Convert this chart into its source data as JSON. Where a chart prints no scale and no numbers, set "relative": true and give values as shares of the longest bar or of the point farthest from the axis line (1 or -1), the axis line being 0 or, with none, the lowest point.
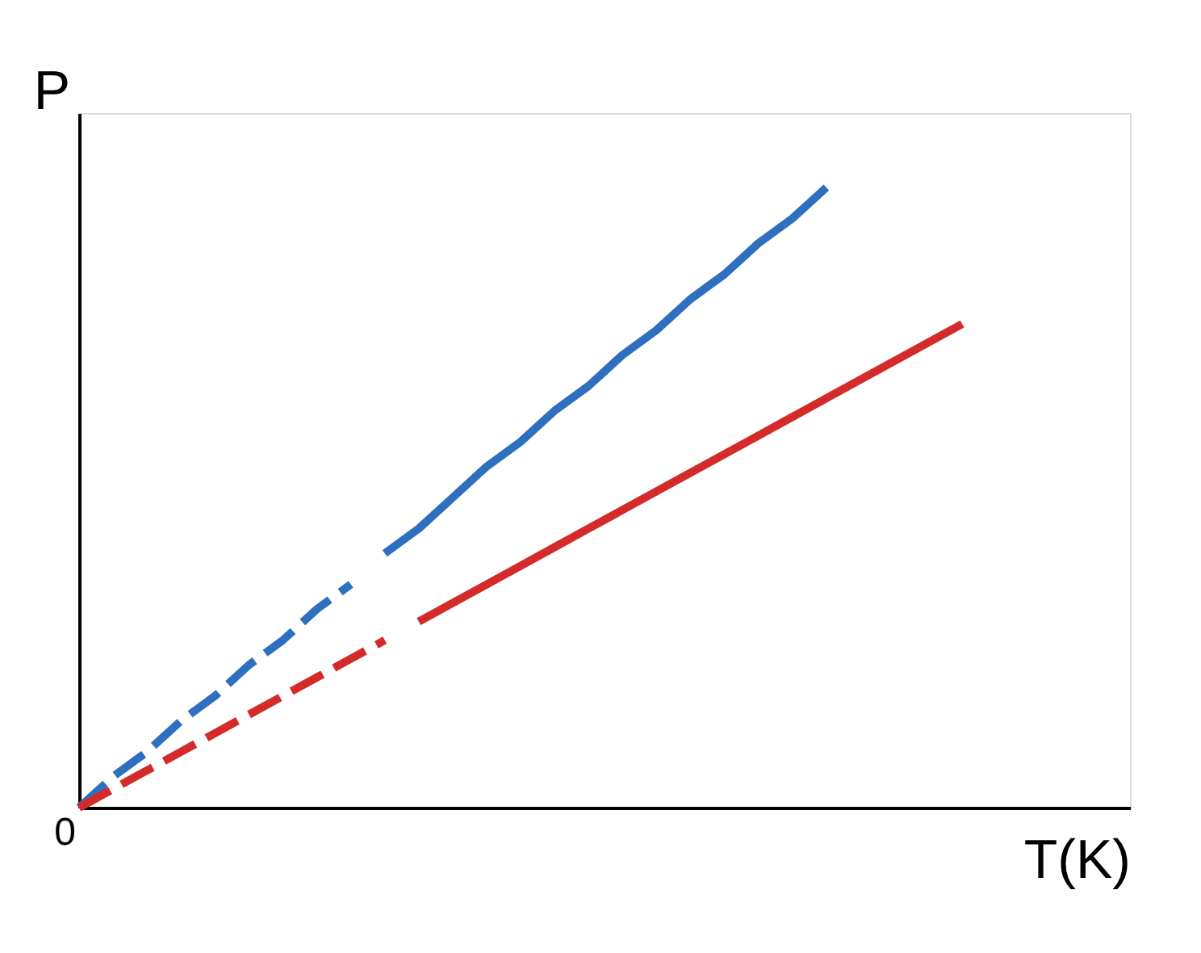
{
  "chart_data": {
    "type": "line",
    "relative": true,
    "xlabel": "T(K)",
    "ylabel": "P",
    "annotations": [
      "0"
    ],
    "grid": false,
    "categories": [
      null,
      null,
      null,
      null,
      null,
      null,
      null,
      null,
      null,
      null,
      null,
      null,
      null,
      null,
      null,
      null,
      null,
      null,
      null,
      null,
      null,
      null,
      null,
      null,
      null,
      null,
      null
    ],
    "series": [
      {
        "color": "#2f6fc0",
        "line_style": "dashed",
        "values": [
          0,
          0.05,
          0.09,
          0.14,
          0.18,
          0.23,
          0.27,
          0.32,
          0.36,
          null,
          null,
          null,
          null,
          null,
          null,
          null,
          null,
          null,
          null,
          null,
          null,
          null,
          null,
          null,
          null,
          null,
          null
        ]
      },
      {
        "color": "#2f6fc0",
        "line_style": "solid",
        "values": [
          null,
          null,
          null,
          null,
          null,
          null,
          null,
          null,
          null,
          0.41,
          0.45,
          0.5,
          0.55,
          0.59,
          0.64,
          0.68,
          0.73,
          0.77,
          0.82,
          0.86,
          0.91,
          0.95,
          1,
          null,
          null,
          null,
          null
        ]
      },
      {
        "color": "#d42a2a",
        "line_style": "dashed",
        "values": [
          0,
          0.03,
          0.06,
          0.09,
          0.12,
          0.15,
          0.18,
          0.21,
          0.24,
          0.27,
          null,
          null,
          null,
          null,
          null,
          null,
          null,
          null,
          null,
          null,
          null,
          null,
          null,
          null,
          null,
          null,
          null
        ]
      },
      {
        "color": "#d42a2a",
        "line_style": "solid",
        "values": [
          null,
          null,
          null,
          null,
          null,
          null,
          null,
          null,
          null,
          null,
          0.3,
          0.33,
          0.36,
          0.39,
          0.42,
          0.45,
          0.48,
          0.51,
          0.54,
          0.57,
          0.6,
          0.63,
          0.66,
          0.69,
          0.72,
          0.75,
          0.78
        ]
      }
    ]
  }
}
